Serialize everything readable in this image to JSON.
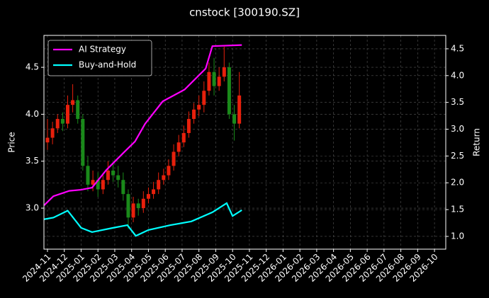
{
  "chart_data": {
    "type": "candlestick",
    "title": "cnstock [300190.SZ]",
    "ylabel": "Price",
    "y2label": "Return",
    "x": [
      0,
      0.3,
      0.6,
      0.9,
      1.2,
      1.5,
      1.8,
      2.1,
      2.4,
      2.7,
      3,
      3.3,
      3.6,
      3.9,
      4.2,
      4.5,
      4.8,
      5.1,
      5.4,
      5.7,
      6,
      6.3,
      6.6,
      6.9,
      7.2,
      7.5,
      7.8,
      8.1,
      8.4,
      8.7,
      9,
      9.3,
      9.6,
      9.9,
      10.2,
      10.5,
      10.8,
      11.1,
      11.4
    ],
    "open": [
      3.7,
      3.75,
      3.85,
      3.95,
      3.9,
      4.1,
      4.15,
      3.95,
      3.45,
      3.25,
      3.3,
      3.2,
      3.3,
      3.4,
      3.35,
      3.3,
      3.15,
      2.9,
      3.05,
      3.0,
      3.1,
      3.15,
      3.2,
      3.3,
      3.35,
      3.45,
      3.6,
      3.7,
      3.8,
      3.95,
      4.05,
      4.1,
      4.25,
      4.45,
      4.3,
      4.4,
      4.5,
      4.0,
      3.9
    ],
    "high": [
      3.95,
      3.92,
      4.0,
      4.02,
      4.2,
      4.32,
      4.2,
      4.0,
      3.55,
      3.4,
      3.38,
      3.35,
      3.5,
      3.48,
      3.45,
      3.38,
      3.2,
      3.12,
      3.1,
      3.18,
      3.22,
      3.28,
      3.38,
      3.42,
      3.52,
      3.68,
      3.78,
      3.88,
      4.03,
      4.12,
      4.2,
      4.35,
      4.55,
      4.6,
      4.5,
      4.72,
      4.55,
      4.1,
      4.45
    ],
    "low": [
      3.62,
      3.68,
      3.8,
      3.82,
      3.85,
      4.02,
      3.9,
      3.4,
      3.18,
      3.18,
      3.12,
      3.15,
      3.25,
      3.28,
      3.22,
      3.08,
      2.78,
      2.85,
      2.92,
      2.95,
      3.05,
      3.1,
      3.15,
      3.25,
      3.3,
      3.4,
      3.55,
      3.65,
      3.75,
      3.9,
      3.98,
      4.02,
      4.2,
      4.2,
      4.25,
      4.35,
      3.95,
      3.72,
      3.85
    ],
    "close": [
      3.75,
      3.85,
      3.95,
      3.9,
      4.1,
      4.15,
      3.95,
      3.45,
      3.25,
      3.3,
      3.2,
      3.3,
      3.4,
      3.35,
      3.3,
      3.15,
      2.9,
      3.05,
      3.0,
      3.1,
      3.15,
      3.2,
      3.3,
      3.35,
      3.45,
      3.6,
      3.7,
      3.8,
      3.95,
      4.05,
      4.1,
      4.25,
      4.45,
      4.3,
      4.4,
      4.5,
      4.0,
      3.9,
      4.2
    ],
    "up_color": "#e8200c",
    "down_color": "#1a8a1a",
    "series": [
      {
        "name": "AI Strategy",
        "color": "#ff00ff",
        "axis": "y2",
        "x": [
          -0.2,
          0.35,
          1.3,
          2.0,
          2.65,
          3.5,
          4.55,
          5.2,
          5.8,
          6.85,
          8.15,
          9.4,
          9.8,
          11.55
        ],
        "values": [
          1.58,
          1.75,
          1.85,
          1.87,
          1.91,
          2.24,
          2.57,
          2.77,
          3.1,
          3.52,
          3.74,
          4.13,
          4.55,
          4.57
        ]
      },
      {
        "name": "Buy-and-Hold",
        "color": "#00ffff",
        "axis": "y2",
        "x": [
          -0.2,
          0.35,
          1.2,
          2.0,
          2.65,
          3.9,
          4.75,
          5.25,
          6.0,
          7.3,
          8.55,
          9.8,
          10.65,
          11.0,
          11.55
        ],
        "values": [
          1.32,
          1.35,
          1.48,
          1.16,
          1.08,
          1.16,
          1.21,
          1.01,
          1.12,
          1.21,
          1.28,
          1.45,
          1.62,
          1.38,
          1.49
        ]
      }
    ],
    "xlim": [
      -0.21,
      23.67
    ],
    "xticks": [
      {
        "value": 0,
        "label": "2024-11"
      },
      {
        "value": 1,
        "label": "2024-12"
      },
      {
        "value": 2,
        "label": "2025-01"
      },
      {
        "value": 3,
        "label": "2025-02"
      },
      {
        "value": 4,
        "label": "2025-03"
      },
      {
        "value": 5,
        "label": "2025-04"
      },
      {
        "value": 6,
        "label": "2025-05"
      },
      {
        "value": 7,
        "label": "2025-06"
      },
      {
        "value": 8,
        "label": "2025-07"
      },
      {
        "value": 9,
        "label": "2025-08"
      },
      {
        "value": 10,
        "label": "2025-09"
      },
      {
        "value": 11,
        "label": "2025-10"
      },
      {
        "value": 12,
        "label": "2025-11"
      },
      {
        "value": 13,
        "label": "2025-12"
      },
      {
        "value": 14,
        "label": "2026-01"
      },
      {
        "value": 15,
        "label": "2026-02"
      },
      {
        "value": 16,
        "label": "2026-03"
      },
      {
        "value": 17,
        "label": "2026-04"
      },
      {
        "value": 18,
        "label": "2026-05"
      },
      {
        "value": 19,
        "label": "2026-06"
      },
      {
        "value": 20,
        "label": "2026-07"
      },
      {
        "value": 21,
        "label": "2026-08"
      },
      {
        "value": 22,
        "label": "2026-09"
      },
      {
        "value": 23,
        "label": "2026-10"
      }
    ],
    "ylim": [
      2.563,
      4.84
    ],
    "yticks": [
      {
        "value": 3,
        "label": "3.0"
      },
      3.5,
      {
        "value": 4,
        "label": "4.0"
      },
      4.5
    ],
    "y2lim": [
      0.762,
      4.75
    ],
    "y2ticks": [
      {
        "value": 1,
        "label": "1.0"
      },
      1.5,
      {
        "value": 2,
        "label": "2.0"
      },
      2.5,
      {
        "value": 3,
        "label": "3.0"
      },
      3.5,
      {
        "value": 4,
        "label": "4.0"
      },
      4.5
    ],
    "grid": true,
    "legend": "upper left"
  }
}
